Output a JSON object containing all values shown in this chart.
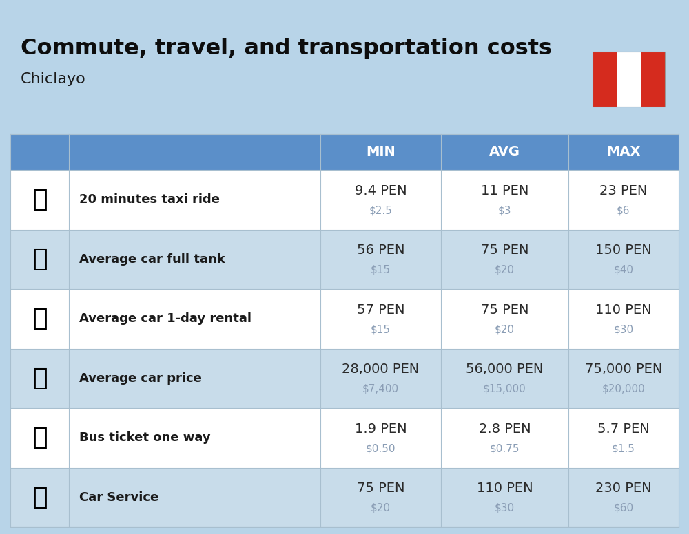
{
  "title": "Commute, travel, and transportation costs",
  "subtitle": "Chiclayo",
  "bg_color": "#b8d4e8",
  "table_bg_color": "#c8dcea",
  "header_bg_color": "#5b8fc9",
  "header_text_color": "#ffffff",
  "row_colors": [
    "#ffffff",
    "#c8dcea"
  ],
  "usd_color": "#8a9db5",
  "pen_color": "#2a2a2a",
  "label_color": "#1a1a1a",
  "col_header_labels": [
    "MIN",
    "AVG",
    "MAX"
  ],
  "flag_colors": [
    "#d52b1e",
    "#ffffff",
    "#d52b1e"
  ],
  "rows": [
    {
      "label": "20 minutes taxi ride",
      "min_pen": "9.4 PEN",
      "min_usd": "$2.5",
      "avg_pen": "11 PEN",
      "avg_usd": "$3",
      "max_pen": "23 PEN",
      "max_usd": "$6"
    },
    {
      "label": "Average car full tank",
      "min_pen": "56 PEN",
      "min_usd": "$15",
      "avg_pen": "75 PEN",
      "avg_usd": "$20",
      "max_pen": "150 PEN",
      "max_usd": "$40"
    },
    {
      "label": "Average car 1-day rental",
      "min_pen": "57 PEN",
      "min_usd": "$15",
      "avg_pen": "75 PEN",
      "avg_usd": "$20",
      "max_pen": "110 PEN",
      "max_usd": "$30"
    },
    {
      "label": "Average car price",
      "min_pen": "28,000 PEN",
      "min_usd": "$7,400",
      "avg_pen": "56,000 PEN",
      "avg_usd": "$15,000",
      "max_pen": "75,000 PEN",
      "max_usd": "$20,000"
    },
    {
      "label": "Bus ticket one way",
      "min_pen": "1.9 PEN",
      "min_usd": "$0.50",
      "avg_pen": "2.8 PEN",
      "avg_usd": "$0.75",
      "max_pen": "5.7 PEN",
      "max_usd": "$1.5"
    },
    {
      "label": "Car Service",
      "min_pen": "75 PEN",
      "min_usd": "$20",
      "avg_pen": "110 PEN",
      "avg_usd": "$30",
      "max_pen": "230 PEN",
      "max_usd": "$60"
    }
  ]
}
